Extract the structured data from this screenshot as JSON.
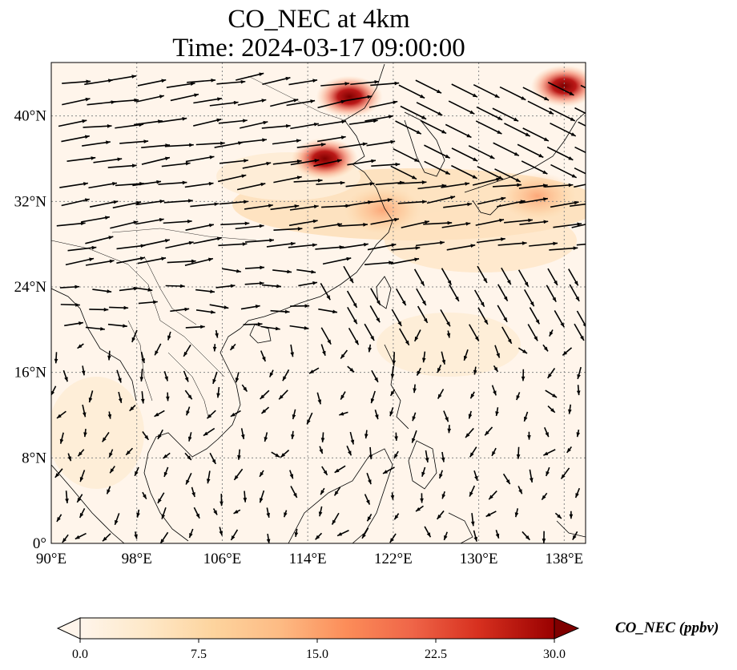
{
  "title": {
    "line1": "CO_NEC at 4km",
    "line2": "Time: 2024-03-17 09:00:00"
  },
  "map": {
    "lon_range": [
      90,
      140
    ],
    "lat_range": [
      0,
      45
    ],
    "x_ticks": [
      "90°E",
      "98°E",
      "106°E",
      "114°E",
      "122°E",
      "130°E",
      "138°E"
    ],
    "x_tick_values": [
      90,
      98,
      106,
      114,
      122,
      130,
      138
    ],
    "y_ticks": [
      "0°",
      "8°N",
      "16°N",
      "24°N",
      "32°N",
      "40°N"
    ],
    "y_tick_values": [
      0,
      8,
      16,
      24,
      32,
      40
    ],
    "gridlines": true,
    "background_color": "#fff5eb",
    "coastline_color": "#000000",
    "vector_color": "#000000"
  },
  "colorbar": {
    "label": "CO_NEC (ppbv)",
    "ticks": [
      "0.0",
      "7.5",
      "15.0",
      "22.5",
      "30.0"
    ],
    "tick_values": [
      0,
      7.5,
      15,
      22.5,
      30
    ],
    "range": [
      0,
      30
    ],
    "colormap": "OrRd",
    "colors": [
      "#fff5eb",
      "#fdd49e",
      "#fdbb84",
      "#fc8d59",
      "#ef6548",
      "#d7301f",
      "#b30000",
      "#7f0000"
    ]
  },
  "plumes": [
    {
      "lon": 115.6,
      "lat": 36.0,
      "value": 30
    },
    {
      "lon": 117.9,
      "lat": 41.8,
      "value": 25
    },
    {
      "lon": 138.0,
      "lat": 42.8,
      "value": 30
    },
    {
      "lon": 135.5,
      "lat": 32.5,
      "value": 12
    },
    {
      "lon": 121.0,
      "lat": 31.2,
      "value": 10
    }
  ]
}
